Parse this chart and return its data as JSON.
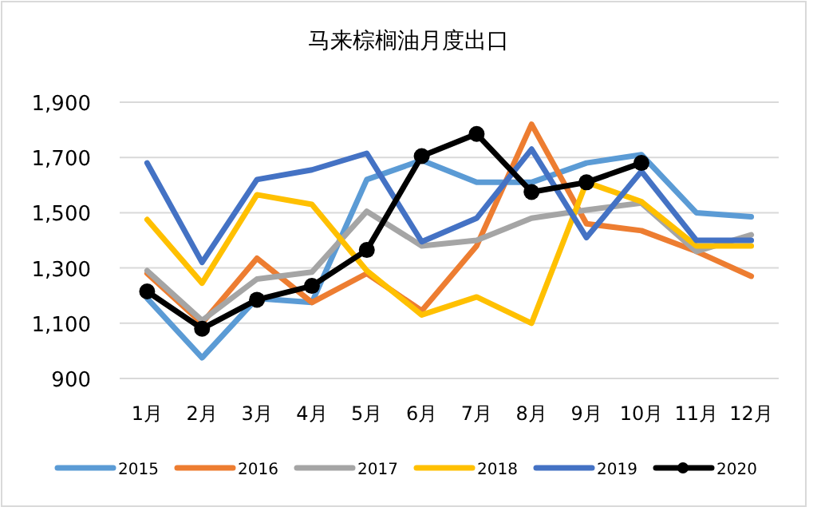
{
  "chart_data": {
    "type": "line",
    "title": "马来棕榈油月度出口",
    "categories": [
      "1月",
      "2月",
      "3月",
      "4月",
      "5月",
      "6月",
      "7月",
      "8月",
      "9月",
      "10月",
      "11月",
      "12月"
    ],
    "series": [
      {
        "name": "2015",
        "color": "#5b9bd5",
        "values": [
          1190,
          975,
          1190,
          1175,
          1620,
          1690,
          1610,
          1610,
          1680,
          1710,
          1500,
          1485
        ]
      },
      {
        "name": "2016",
        "color": "#ed7d31",
        "values": [
          1280,
          1100,
          1335,
          1175,
          1280,
          1145,
          1380,
          1820,
          1460,
          1435,
          1360,
          1270
        ]
      },
      {
        "name": "2017",
        "color": "#a5a5a5",
        "values": [
          1290,
          1110,
          1260,
          1285,
          1505,
          1380,
          1400,
          1480,
          1510,
          1535,
          1360,
          1420
        ]
      },
      {
        "name": "2018",
        "color": "#ffc000",
        "values": [
          1475,
          1245,
          1565,
          1530,
          1290,
          1130,
          1195,
          1100,
          1610,
          1540,
          1380,
          1380
        ]
      },
      {
        "name": "2019",
        "color": "#4472c4",
        "values": [
          1680,
          1320,
          1620,
          1655,
          1715,
          1395,
          1480,
          1730,
          1410,
          1650,
          1400,
          1400
        ]
      },
      {
        "name": "2020",
        "color": "#000000",
        "marker": "circle",
        "values": [
          1215,
          1080,
          1185,
          1235,
          1365,
          1705,
          1785,
          1575,
          1610,
          1680,
          null,
          null
        ]
      }
    ],
    "ylim": [
      900,
      1900
    ],
    "yticks": [
      {
        "value": 900,
        "label": "900"
      },
      {
        "value": 1100,
        "label": "1,100"
      },
      {
        "value": 1300,
        "label": "1,300"
      },
      {
        "value": 1500,
        "label": "1,500"
      },
      {
        "value": 1700,
        "label": "1,700"
      },
      {
        "value": 1900,
        "label": "1,900"
      }
    ],
    "grid": "y",
    "legend": "bottom"
  }
}
